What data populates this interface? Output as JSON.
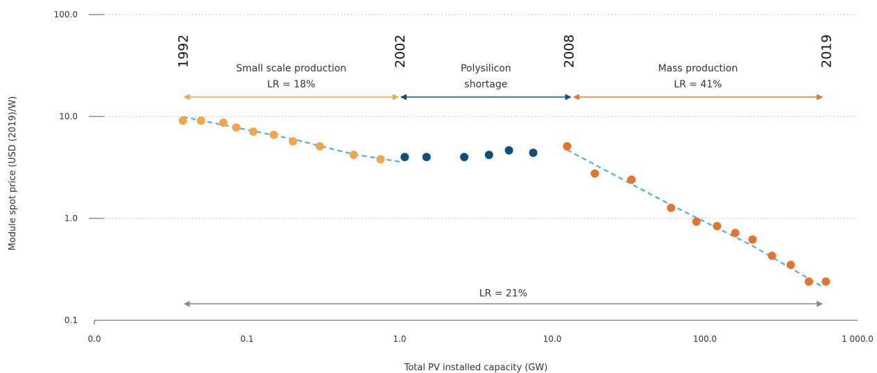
{
  "chart_data": {
    "type": "scatter",
    "xlabel": "Total PV installed capacity (GW)",
    "ylabel": "Module spot price (USD (2019)/W)",
    "xscale": "log",
    "yscale": "log",
    "xlim": [
      0.01,
      1000
    ],
    "ylim": [
      0.1,
      100
    ],
    "x_ticks": [
      "0.0",
      "0.1",
      "1.0",
      "10.0",
      "100.0",
      "1 000.0"
    ],
    "y_ticks": [
      "0.1",
      "1.0",
      "10.0",
      "100.0"
    ],
    "grid": "horizontal dotted",
    "series": [
      {
        "color": "#f2a54a",
        "points": [
          {
            "x": 0.038,
            "y": 9.1
          },
          {
            "x": 0.05,
            "y": 9.1
          },
          {
            "x": 0.07,
            "y": 8.7
          },
          {
            "x": 0.085,
            "y": 7.8
          },
          {
            "x": 0.11,
            "y": 7.1
          },
          {
            "x": 0.15,
            "y": 6.6
          },
          {
            "x": 0.2,
            "y": 5.7
          },
          {
            "x": 0.3,
            "y": 5.1
          },
          {
            "x": 0.5,
            "y": 4.2
          },
          {
            "x": 0.75,
            "y": 3.8
          }
        ]
      },
      {
        "color": "#0b4f7f",
        "points": [
          {
            "x": 1.08,
            "y": 4.0
          },
          {
            "x": 1.5,
            "y": 4.0
          },
          {
            "x": 2.65,
            "y": 4.0
          },
          {
            "x": 3.85,
            "y": 4.2
          },
          {
            "x": 5.2,
            "y": 4.65
          },
          {
            "x": 7.5,
            "y": 4.4
          }
        ]
      },
      {
        "color": "#e5742c",
        "points": [
          {
            "x": 12.5,
            "y": 5.1
          },
          {
            "x": 19,
            "y": 2.75
          },
          {
            "x": 33,
            "y": 2.4
          },
          {
            "x": 60,
            "y": 1.27
          },
          {
            "x": 88,
            "y": 0.93
          },
          {
            "x": 120,
            "y": 0.84
          },
          {
            "x": 158,
            "y": 0.72
          },
          {
            "x": 205,
            "y": 0.62
          },
          {
            "x": 275,
            "y": 0.43
          },
          {
            "x": 365,
            "y": 0.35
          },
          {
            "x": 480,
            "y": 0.24
          },
          {
            "x": 620,
            "y": 0.24
          }
        ]
      }
    ],
    "trendlines": [
      {
        "color": "#4bb3cf",
        "points": [
          {
            "x": 0.038,
            "y": 9.9
          },
          {
            "x": 0.2,
            "y": 6.0
          },
          {
            "x": 0.5,
            "y": 4.25
          },
          {
            "x": 1.0,
            "y": 3.6
          }
        ]
      },
      {
        "color": "#4bb3cf",
        "points": [
          {
            "x": 12.5,
            "y": 4.7
          },
          {
            "x": 60,
            "y": 1.35
          },
          {
            "x": 200,
            "y": 0.55
          },
          {
            "x": 600,
            "y": 0.21
          }
        ]
      }
    ],
    "phases": [
      {
        "label_line1": "Small scale production",
        "label_line2": "LR = 18%",
        "from": 0.038,
        "to": 1.0,
        "color": "#f2a54a",
        "y": 15.5
      },
      {
        "label_line1": "Polysilicon",
        "label_line2": "shortage",
        "from": 1.0,
        "to": 13.5,
        "color": "#0b4f7f",
        "y": 15.5
      },
      {
        "label_line1": "Mass production",
        "label_line2": "LR = 41%",
        "from": 13.5,
        "to": 600,
        "color": "#e5742c",
        "y": 15.5
      }
    ],
    "overall": {
      "label": "LR = 21%",
      "from": 0.038,
      "to": 600,
      "color": "#8a8a8a",
      "y": 0.145
    },
    "year_markers": [
      {
        "label": "1992",
        "x": 0.038
      },
      {
        "label": "2002",
        "x": 1.0
      },
      {
        "label": "2008",
        "x": 12.8
      },
      {
        "label": "2019",
        "x": 620
      }
    ]
  }
}
